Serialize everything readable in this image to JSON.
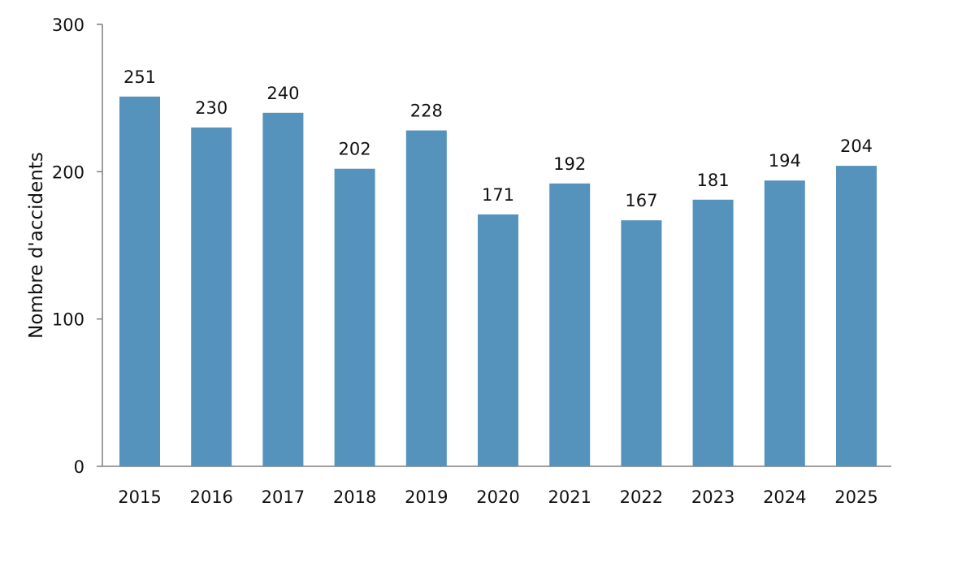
{
  "chart_data": {
    "type": "bar",
    "categories": [
      "2015",
      "2016",
      "2017",
      "2018",
      "2019",
      "2020",
      "2021",
      "2022",
      "2023",
      "2024",
      "2025"
    ],
    "values": [
      251,
      230,
      240,
      202,
      228,
      171,
      192,
      167,
      181,
      194,
      204
    ],
    "data_labels": [
      "251",
      "230",
      "240",
      "202",
      "228",
      "171",
      "192",
      "167",
      "181",
      "194",
      "204"
    ],
    "title": "",
    "xlabel": "",
    "ylabel": "Nombre d'accidents",
    "ylim": [
      0,
      300
    ],
    "yticks": [
      "0",
      "100",
      "200",
      "300"
    ],
    "bar_color": "#5593bd",
    "grid": false,
    "legend": "none"
  }
}
